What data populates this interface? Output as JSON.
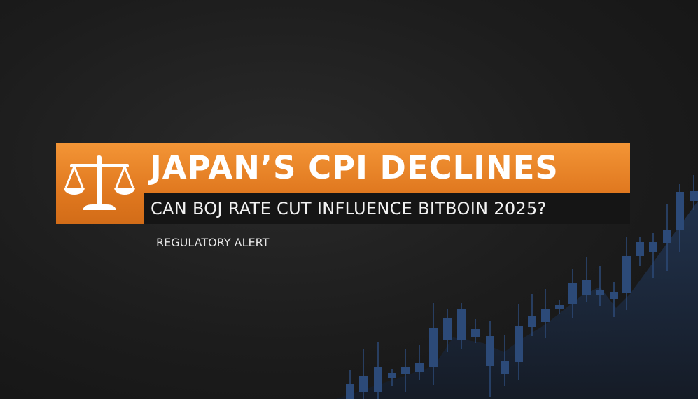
{
  "headline": {
    "title": "JAPAN’S CPI DECLINES",
    "subtitle": "CAN BOJ RATE CUT INFLUENCE BITBOIN 2025?",
    "tag": "REGULATORY ALERT"
  },
  "icon": "scales-of-justice-icon",
  "colors": {
    "accent": "#ee8a2c",
    "background": "#1c1c1c",
    "candles": "#2c4a78"
  }
}
